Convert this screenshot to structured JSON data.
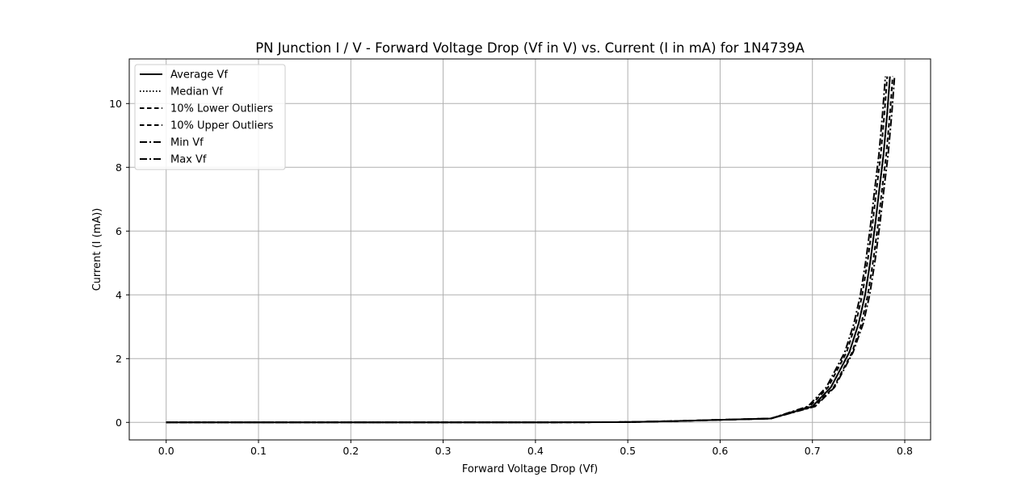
{
  "chart_data": {
    "type": "line",
    "title": "PN Junction I / V - Forward Voltage Drop (Vf in V) vs. Current (I in mA) for 1N4739A",
    "xlabel": "Forward Voltage Drop (Vf)",
    "ylabel": "Current (I (mA))",
    "xlim": [
      -0.04,
      0.828
    ],
    "ylim": [
      -0.55,
      11.4
    ],
    "xticks": [
      0.0,
      0.1,
      0.2,
      0.3,
      0.4,
      0.5,
      0.6,
      0.7,
      0.8
    ],
    "xtick_labels": [
      "0.0",
      "0.1",
      "0.2",
      "0.3",
      "0.4",
      "0.5",
      "0.6",
      "0.7",
      "0.8"
    ],
    "yticks": [
      0,
      2,
      4,
      6,
      8,
      10
    ],
    "ytick_labels": [
      "0",
      "2",
      "4",
      "6",
      "8",
      "10"
    ],
    "grid": true,
    "legend_position": "upper-left",
    "series": [
      {
        "name": "Average Vf",
        "style": "solid",
        "color": "#000000",
        "x": [
          0.0,
          0.1,
          0.2,
          0.3,
          0.4,
          0.5,
          0.55,
          0.6,
          0.655,
          0.7,
          0.72,
          0.74,
          0.75,
          0.757,
          0.763,
          0.768,
          0.772,
          0.777,
          0.781,
          0.784
        ],
        "y": [
          0.0,
          0.0,
          0.0,
          0.0,
          0.0,
          0.01,
          0.04,
          0.08,
          0.12,
          0.5,
          1.1,
          2.2,
          3.1,
          4.0,
          5.1,
          6.2,
          7.2,
          8.4,
          9.7,
          10.85
        ]
      },
      {
        "name": "Median Vf",
        "style": "dotted",
        "color": "#000000",
        "x": [
          0.0,
          0.1,
          0.2,
          0.3,
          0.4,
          0.5,
          0.55,
          0.6,
          0.655,
          0.7,
          0.72,
          0.74,
          0.75,
          0.757,
          0.763,
          0.768,
          0.772,
          0.777,
          0.781,
          0.784
        ],
        "y": [
          0.0,
          0.0,
          0.0,
          0.0,
          0.0,
          0.01,
          0.04,
          0.08,
          0.12,
          0.5,
          1.1,
          2.2,
          3.1,
          4.0,
          5.1,
          6.2,
          7.2,
          8.4,
          9.7,
          10.85
        ]
      },
      {
        "name": "10% Lower Outliers",
        "style": "dashed",
        "color": "#000000",
        "x": [
          0.0,
          0.1,
          0.2,
          0.3,
          0.4,
          0.5,
          0.55,
          0.6,
          0.655,
          0.697,
          0.717,
          0.737,
          0.747,
          0.754,
          0.76,
          0.765,
          0.769,
          0.774,
          0.778,
          0.781
        ],
        "y": [
          0.0,
          0.0,
          0.0,
          0.0,
          0.0,
          0.01,
          0.04,
          0.08,
          0.12,
          0.5,
          1.1,
          2.2,
          3.1,
          4.0,
          5.1,
          6.2,
          7.2,
          8.4,
          9.7,
          10.85
        ]
      },
      {
        "name": "10% Upper Outliers",
        "style": "dashed",
        "color": "#000000",
        "x": [
          0.0,
          0.1,
          0.2,
          0.3,
          0.4,
          0.5,
          0.55,
          0.6,
          0.655,
          0.702,
          0.723,
          0.743,
          0.753,
          0.76,
          0.766,
          0.771,
          0.775,
          0.78,
          0.784,
          0.787
        ],
        "y": [
          0.0,
          0.0,
          0.0,
          0.0,
          0.0,
          0.01,
          0.04,
          0.08,
          0.12,
          0.5,
          1.1,
          2.2,
          3.1,
          4.0,
          5.1,
          6.2,
          7.2,
          8.4,
          9.7,
          10.85
        ]
      },
      {
        "name": "Min Vf",
        "style": "dashdot",
        "color": "#000000",
        "x": [
          0.0,
          0.1,
          0.2,
          0.3,
          0.4,
          0.5,
          0.55,
          0.6,
          0.655,
          0.695,
          0.715,
          0.735,
          0.745,
          0.752,
          0.758,
          0.763,
          0.767,
          0.772,
          0.776,
          0.779
        ],
        "y": [
          0.0,
          0.0,
          0.0,
          0.0,
          0.0,
          0.01,
          0.04,
          0.08,
          0.12,
          0.5,
          1.1,
          2.2,
          3.1,
          4.0,
          5.1,
          6.2,
          7.2,
          8.4,
          9.7,
          10.85
        ]
      },
      {
        "name": "Max Vf",
        "style": "dashdot",
        "color": "#000000",
        "x": [
          0.0,
          0.1,
          0.2,
          0.3,
          0.4,
          0.5,
          0.55,
          0.6,
          0.655,
          0.703,
          0.724,
          0.744,
          0.755,
          0.762,
          0.768,
          0.773,
          0.777,
          0.782,
          0.786,
          0.789
        ],
        "y": [
          0.0,
          0.0,
          0.0,
          0.0,
          0.0,
          0.01,
          0.04,
          0.08,
          0.12,
          0.5,
          1.1,
          2.2,
          3.1,
          4.0,
          5.1,
          6.2,
          7.2,
          8.4,
          9.7,
          10.85
        ]
      }
    ]
  }
}
